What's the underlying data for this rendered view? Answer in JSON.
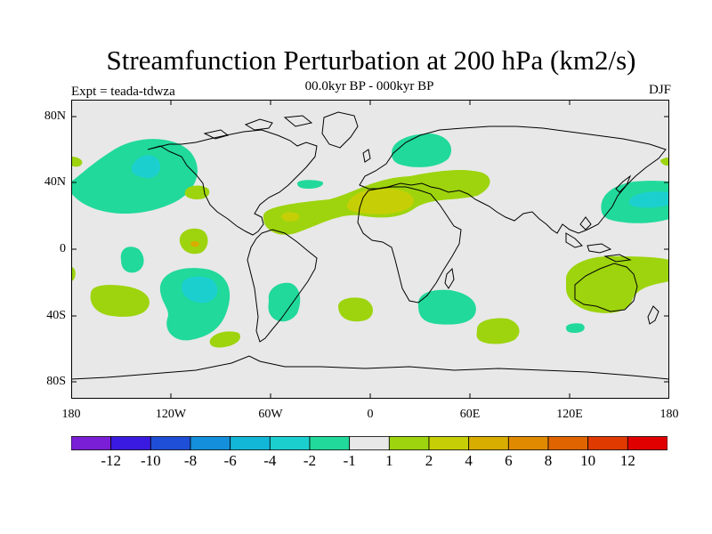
{
  "title": "Streamfunction Perturbation at 200 hPa (km2/s)",
  "subtitle": "00.0kyr BP - 000kyr BP",
  "experiment": "Expt = teada-tdwza",
  "season": "DJF",
  "lat_labels": [
    "80N",
    "40N",
    "0",
    "40S",
    "80S"
  ],
  "lon_labels": [
    "180",
    "120W",
    "60W",
    "0",
    "60E",
    "120E",
    "180"
  ],
  "colorbar": {
    "colors": [
      "#7b1fd6",
      "#3a1ae0",
      "#1f4fd6",
      "#138fdc",
      "#12b7d8",
      "#1ccfcf",
      "#21d99a",
      "#e8e8e8",
      "#9dd40e",
      "#c6cf05",
      "#d9ac00",
      "#e08a00",
      "#e06400",
      "#e03a00",
      "#e00000"
    ],
    "labels": [
      "-12",
      "-10",
      "-8",
      "-6",
      "-4",
      "-2",
      "-1",
      "1",
      "2",
      "4",
      "6",
      "8",
      "10",
      "12"
    ]
  },
  "colors": {
    "background": "#e8e8e8",
    "neg_low": "#21d99a",
    "neg_mid": "#1ccfcf",
    "pos_low": "#9dd40e",
    "pos_mid": "#c6cf05",
    "pos_high": "#d9ac00"
  }
}
